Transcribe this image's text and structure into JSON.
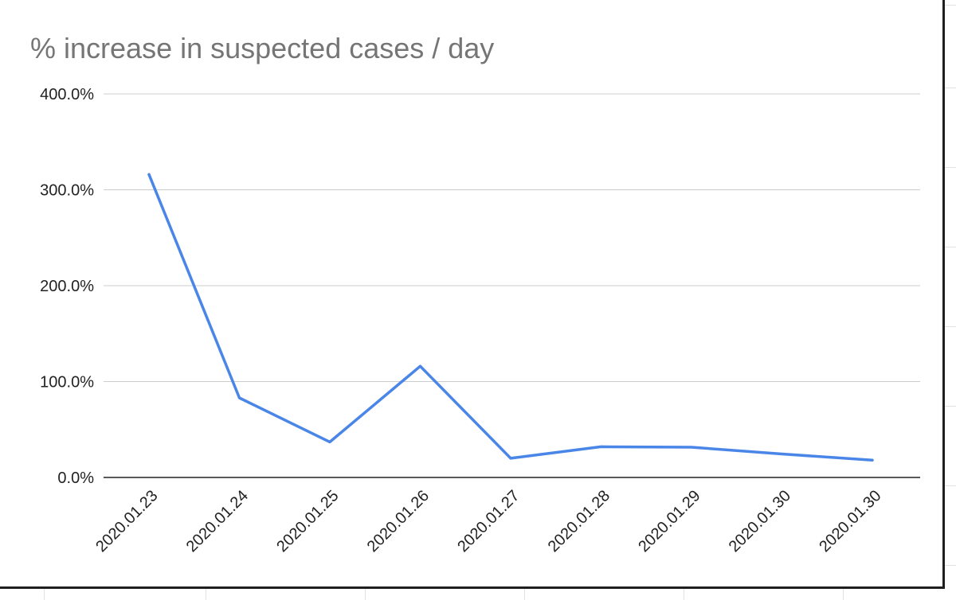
{
  "chart_data": {
    "type": "line",
    "title": "% increase in suspected cases / day",
    "xlabel": "",
    "ylabel": "",
    "categories": [
      "2020.01.23",
      "2020.01.24",
      "2020.01.25",
      "2020.01.26",
      "2020.01.27",
      "2020.01.28",
      "2020.01.29",
      "2020.01.30",
      "2020.01.30"
    ],
    "series": [
      {
        "values": [
          316.0,
          83.0,
          37.0,
          116.0,
          20.0,
          32.0,
          31.5,
          24.5,
          18.0
        ],
        "color": "#4a86e8"
      }
    ],
    "ylim": [
      0,
      400
    ],
    "yticks": [
      0,
      100,
      200,
      300,
      400
    ],
    "ytick_labels": [
      "0.0%",
      "100.0%",
      "200.0%",
      "300.0%",
      "400.0%"
    ],
    "grid": true,
    "legend": "none"
  }
}
